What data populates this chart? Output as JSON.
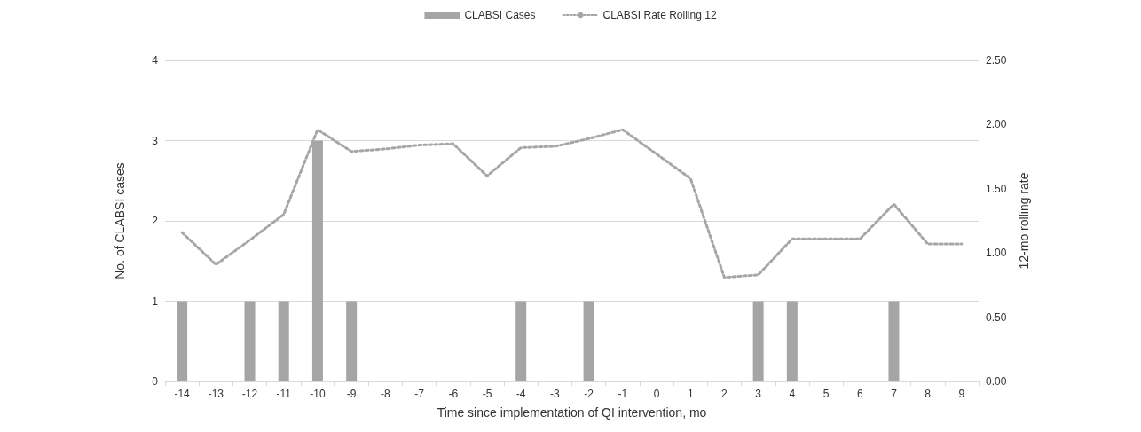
{
  "chart_data": {
    "type": "bar",
    "xlabel": "Time since implementation of QI intervention, mo",
    "ylabel": "No. of CLABSI cases",
    "y2label": "12-mo rolling rate",
    "categories": [
      "-14",
      "-13",
      "-12",
      "-11",
      "-10",
      "-9",
      "-8",
      "-7",
      "-6",
      "-5",
      "-4",
      "-3",
      "-2",
      "-1",
      "0",
      "1",
      "2",
      "3",
      "4",
      "5",
      "6",
      "7",
      "8",
      "9"
    ],
    "series": [
      {
        "name": "CLABSI Cases",
        "color": "#a5a5a5",
        "values": [
          1,
          0,
          1,
          1,
          3,
          1,
          0,
          0,
          0,
          0,
          1,
          0,
          1,
          0,
          0,
          0,
          0,
          1,
          1,
          0,
          0,
          1,
          0,
          0
        ]
      },
      {
        "name": "CLABSI Rate Rolling 12",
        "type": "line",
        "axis": "y2",
        "color": "#a6a6a6",
        "line_style": "dotted",
        "marker": "none",
        "values": [
          1.16,
          0.91,
          1.1,
          1.3,
          1.96,
          1.79,
          1.81,
          1.84,
          1.85,
          1.6,
          1.82,
          1.83,
          1.89,
          1.96,
          1.77,
          1.58,
          0.81,
          0.83,
          1.11,
          1.11,
          1.11,
          1.38,
          1.07,
          1.07
        ]
      }
    ],
    "ylim": [
      0,
      4
    ],
    "yticks": [
      0,
      1,
      2,
      3,
      4
    ],
    "y2lim": [
      0,
      2.5
    ],
    "y2ticks": [
      {
        "value": 0,
        "label": "0.00"
      },
      {
        "value": 0.5,
        "label": "0.50"
      },
      {
        "value": 1,
        "label": "1.00"
      },
      {
        "value": 1.5,
        "label": "1.50"
      },
      {
        "value": 2,
        "label": "2.00"
      },
      {
        "value": 2.5,
        "label": "2.50"
      }
    ],
    "grid": "y",
    "legend": "top"
  }
}
